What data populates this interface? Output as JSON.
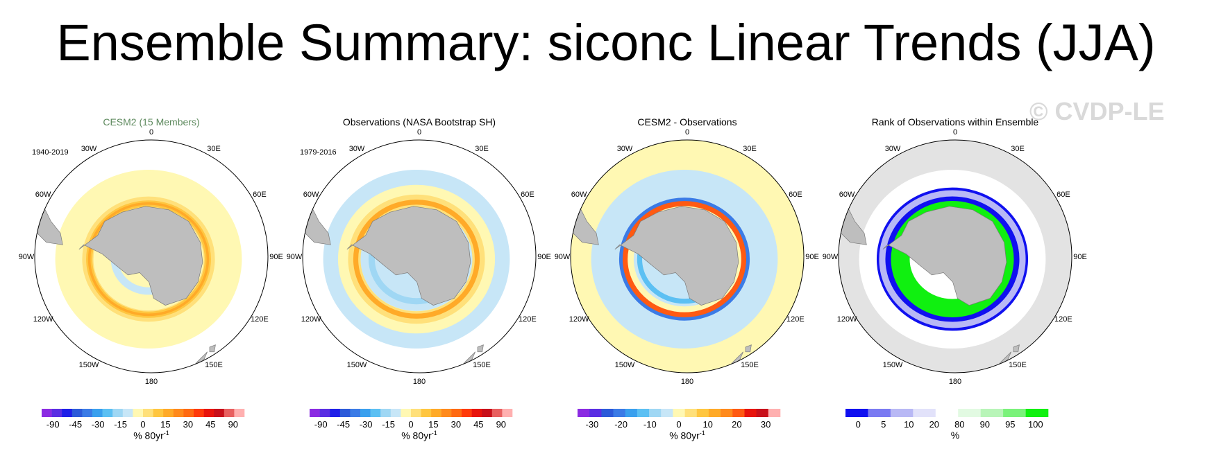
{
  "title": "Ensemble Summary: siconc Linear Trends (JJA)",
  "watermark": "© CVDP-LE",
  "colors": {
    "land": "#bebebe",
    "rank_ocean": "#e3e3e3",
    "model_title": "#5e8a5e"
  },
  "longitude_labels": [
    "0",
    "30E",
    "60E",
    "90E",
    "120E",
    "150E",
    "180",
    "150W",
    "120W",
    "90W",
    "60W",
    "30W"
  ],
  "trend_scale_90": {
    "colors": [
      "#8b2be2",
      "#5a2ee3",
      "#1f1fe8",
      "#2c5ad9",
      "#3b7be6",
      "#3aa0ee",
      "#5cc0f3",
      "#9fd7f4",
      "#c7e6f7",
      "#fff8b3",
      "#ffe07a",
      "#ffc640",
      "#ffaa28",
      "#ff8a1c",
      "#ff6a12",
      "#ff3a0a",
      "#e8140c",
      "#c8101a",
      "#e86060",
      "#ffb0b0"
    ],
    "labels": [
      "-90",
      "-45",
      "-30",
      "-15",
      "0",
      "15",
      "30",
      "45",
      "90"
    ]
  },
  "trend_scale_diff": {
    "colors": [
      "#8b2be2",
      "#5a2ee3",
      "#2c5ad9",
      "#3b7be6",
      "#3aa0ee",
      "#5cc0f3",
      "#9fd7f4",
      "#c7e6f7",
      "#fff8b3",
      "#ffe07a",
      "#ffc640",
      "#ffaa28",
      "#ff8a1c",
      "#ff5a12",
      "#e8140c",
      "#c8101a",
      "#ffb0b0"
    ],
    "labels": [
      "-30",
      "-20",
      "-10",
      "0",
      "10",
      "20",
      "30"
    ]
  },
  "rank_scale": {
    "colors": [
      "#1010f0",
      "#7a7af2",
      "#b8b8f5",
      "#e2e2fa",
      "#ffffff",
      "#e2fae2",
      "#b8f5b8",
      "#7af27a",
      "#10f010"
    ],
    "labels": [
      "0",
      "5",
      "10",
      "20",
      "80",
      "90",
      "95",
      "100"
    ]
  },
  "panels": [
    {
      "title": "CESM2 (15 Members)",
      "period": "1940-2019",
      "units": "% 80yr",
      "units_sup": "-1",
      "scale": "trend_scale_90",
      "background": "#ffffff",
      "ice_box": false,
      "rings": [
        {
          "color": "#fff8b3",
          "outer": 1.0,
          "inner": 0.36,
          "width": 0
        },
        {
          "color": "#ffe07a",
          "outer": 0.84,
          "width": 18
        },
        {
          "color": "#ffc640",
          "outer": 0.82,
          "width": 10
        },
        {
          "color": "#ffaa28",
          "outer": 0.82,
          "width": 4
        },
        {
          "color": "#c7e6f7",
          "outer": 0.47,
          "width": 12
        }
      ]
    },
    {
      "title": "Observations (NASA Bootstrap SH)",
      "period": "1979-2016",
      "units": "% 80yr",
      "units_sup": "-1",
      "scale": "trend_scale_90",
      "background": "#ffffff",
      "ice_box": false,
      "rings": [
        {
          "color": "#c7e6f7",
          "outer": 1.0,
          "inner": 0.36,
          "width": 0
        },
        {
          "color": "#fff8b3",
          "outer": 0.93,
          "width": 36
        },
        {
          "color": "#ffe07a",
          "outer": 0.86,
          "width": 20
        },
        {
          "color": "#ffaa28",
          "outer": 0.84,
          "width": 8
        },
        {
          "color": "#9fd7f4",
          "outer": 0.62,
          "width": 10
        }
      ]
    },
    {
      "title": "CESM2 - Observations",
      "period": "",
      "units": "% 80yr",
      "units_sup": "-1",
      "scale": "trend_scale_diff",
      "background": "#fff8b3",
      "ice_box": true,
      "rings": [
        {
          "color": "#c7e6f7",
          "outer": 1.0,
          "inner": 0.36,
          "width": 0
        },
        {
          "color": "#fff8b3",
          "outer": 0.78,
          "width": 18
        },
        {
          "color": "#3b7be6",
          "outer": 0.86,
          "width": 10
        },
        {
          "color": "#ff5a12",
          "outer": 0.82,
          "width": 8
        },
        {
          "color": "#5cc0f3",
          "outer": 0.62,
          "width": 8
        }
      ]
    },
    {
      "title": "Rank of Observations within Ensemble",
      "period": "",
      "units": "%",
      "units_sup": "",
      "scale": "rank_scale",
      "background": "#e3e3e3",
      "ice_box": false,
      "rings": [
        {
          "color": "#ffffff",
          "outer": 1.0,
          "inner": 0.36,
          "width": 0
        },
        {
          "color": "#1010f0",
          "outer": 0.9,
          "width": 34
        },
        {
          "color": "#b8b8f5",
          "outer": 0.97,
          "width": 10
        },
        {
          "color": "#10f010",
          "outer": 0.72,
          "width": 30
        },
        {
          "color": "#ffffff",
          "outer": 0.56,
          "width": 6
        }
      ]
    }
  ]
}
